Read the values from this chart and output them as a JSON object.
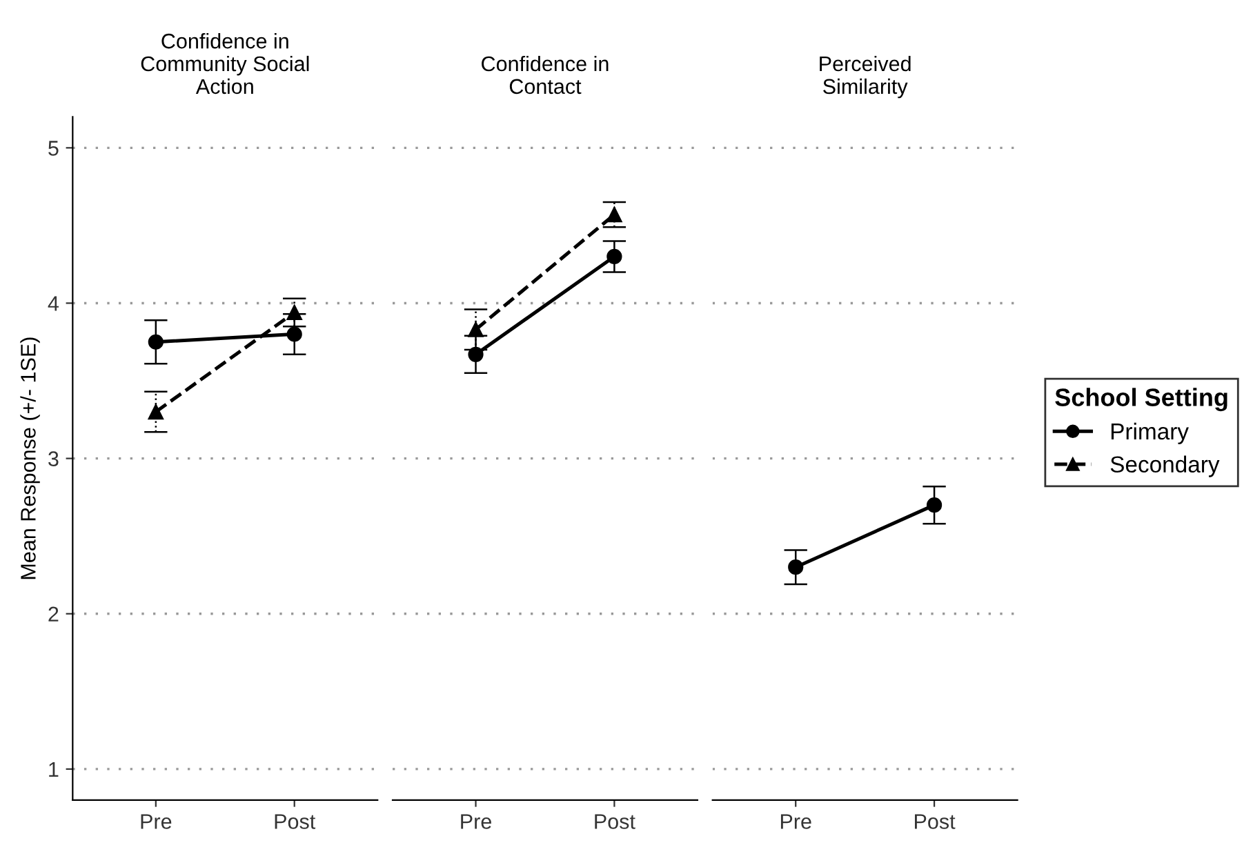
{
  "chart_data": [
    {
      "type": "line",
      "title": "Confidence in\nCommunity Social\nAction",
      "ylabel": "Mean Response (+/- 1SE)",
      "categories": [
        "Pre",
        "Post"
      ],
      "ylim": [
        0.8,
        5.2
      ],
      "yticks": [
        1,
        2,
        3,
        4,
        5
      ],
      "grid": "y",
      "legend": "right",
      "legend_title": "School Setting",
      "series": [
        {
          "name": "Primary",
          "color": "#000000",
          "marker": "circle",
          "line_style": "solid",
          "values": [
            3.75,
            3.8
          ],
          "errors": [
            0.14,
            0.13
          ]
        },
        {
          "name": "Secondary",
          "color": "#000000",
          "marker": "triangle",
          "line_style": "dashed",
          "values": [
            3.3,
            3.94
          ],
          "errors": [
            0.13,
            0.09
          ]
        }
      ]
    },
    {
      "type": "line",
      "title": "Confidence in\nContact",
      "categories": [
        "Pre",
        "Post"
      ],
      "yticks": [
        1,
        2,
        3,
        4,
        5
      ],
      "grid": "y",
      "tick_labels": "x",
      "series": [
        {
          "name": "Primary",
          "color": "#000000",
          "marker": "circle",
          "line_style": "solid",
          "values": [
            3.67,
            4.3
          ],
          "errors": [
            0.12,
            0.1
          ]
        },
        {
          "name": "Secondary",
          "color": "#000000",
          "marker": "triangle",
          "line_style": "dashed",
          "values": [
            3.83,
            4.57
          ],
          "errors": [
            0.13,
            0.08
          ]
        }
      ]
    },
    {
      "type": "line",
      "title": "Perceived\nSimilarity",
      "categories": [
        "Pre",
        "Post"
      ],
      "yticks": [
        1,
        2,
        3,
        4,
        5
      ],
      "grid": "y",
      "tick_labels": "x",
      "series": [
        {
          "name": "Primary",
          "color": "#000000",
          "marker": "circle",
          "line_style": "solid",
          "values": [
            2.3,
            2.7
          ],
          "errors": [
            0.11,
            0.12
          ]
        }
      ]
    }
  ]
}
